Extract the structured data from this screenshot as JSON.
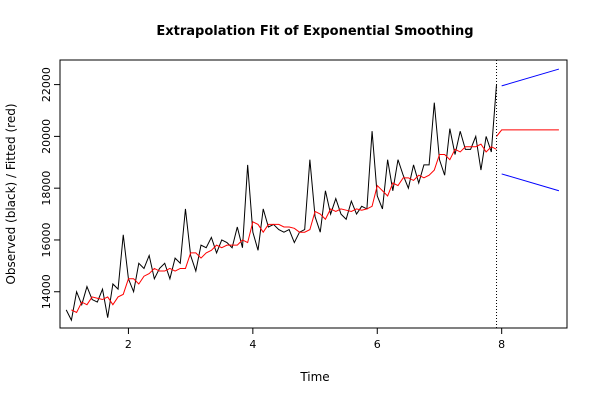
{
  "chart_data": {
    "type": "line",
    "title": "Extrapolation Fit of Exponential Smoothing",
    "xlabel": "Time",
    "ylabel": "Observed (black) / Fitted (red)",
    "xlim": [
      0.9,
      9.05
    ],
    "ylim": [
      12600,
      22950
    ],
    "x_ticks": [
      2,
      4,
      6,
      8
    ],
    "y_ticks": [
      14000,
      16000,
      18000,
      20000,
      22000
    ],
    "forecast_divider_x": 7.917,
    "series": [
      {
        "name": "observed",
        "color": "#000000",
        "x_start": 1.0,
        "x_step": 0.0833333,
        "values": [
          13300,
          12900,
          14000,
          13500,
          14200,
          13700,
          13600,
          14100,
          13000,
          14300,
          14100,
          16200,
          14500,
          14000,
          15100,
          14900,
          15400,
          14500,
          14900,
          15100,
          14500,
          15300,
          15100,
          17200,
          15400,
          14800,
          15800,
          15700,
          16100,
          15500,
          16000,
          15900,
          15700,
          16500,
          15700,
          18900,
          16300,
          15600,
          17200,
          16500,
          16600,
          16400,
          16300,
          16400,
          15900,
          16300,
          16400,
          19100,
          16900,
          16300,
          17900,
          17000,
          17600,
          17000,
          16800,
          17500,
          17000,
          17300,
          17200,
          20200,
          17700,
          17200,
          19100,
          17900,
          19100,
          18500,
          18000,
          18900,
          18200,
          18900,
          18900,
          21300,
          19100,
          18500,
          20300,
          19300,
          20200,
          19500,
          19500,
          20000,
          18700,
          20000,
          19400,
          22000
        ]
      },
      {
        "name": "fitted",
        "color": "#ff0000",
        "x_start": 1.0833333,
        "x_step": 0.0833333,
        "values": [
          13300,
          13200,
          13600,
          13500,
          13800,
          13750,
          13700,
          13800,
          13500,
          13800,
          13900,
          14500,
          14500,
          14300,
          14600,
          14700,
          14900,
          14800,
          14800,
          14900,
          14800,
          14900,
          14900,
          15500,
          15500,
          15300,
          15500,
          15600,
          15800,
          15700,
          15800,
          15800,
          15800,
          16000,
          15900,
          16700,
          16600,
          16300,
          16600,
          16600,
          16600,
          16500,
          16500,
          16450,
          16300,
          16300,
          16400,
          17100,
          17000,
          16800,
          17200,
          17100,
          17200,
          17150,
          17100,
          17200,
          17150,
          17200,
          17300,
          18100,
          17900,
          17700,
          18200,
          18100,
          18400,
          18400,
          18300,
          18500,
          18400,
          18500,
          18700,
          19300,
          19300,
          19100,
          19500,
          19400,
          19600,
          19600,
          19600,
          19700,
          19400,
          19600,
          19500
        ]
      },
      {
        "name": "forecast",
        "color": "#ff0000",
        "x": [
          7.917,
          8.0,
          8.92
        ],
        "values": [
          20000,
          20250,
          20250
        ]
      },
      {
        "name": "upper bound",
        "color": "#0000ff",
        "x": [
          8.0,
          8.92
        ],
        "values": [
          21950,
          22600
        ]
      },
      {
        "name": "lower bound",
        "color": "#0000ff",
        "x": [
          8.0,
          8.92
        ],
        "values": [
          18550,
          17900
        ]
      }
    ]
  }
}
